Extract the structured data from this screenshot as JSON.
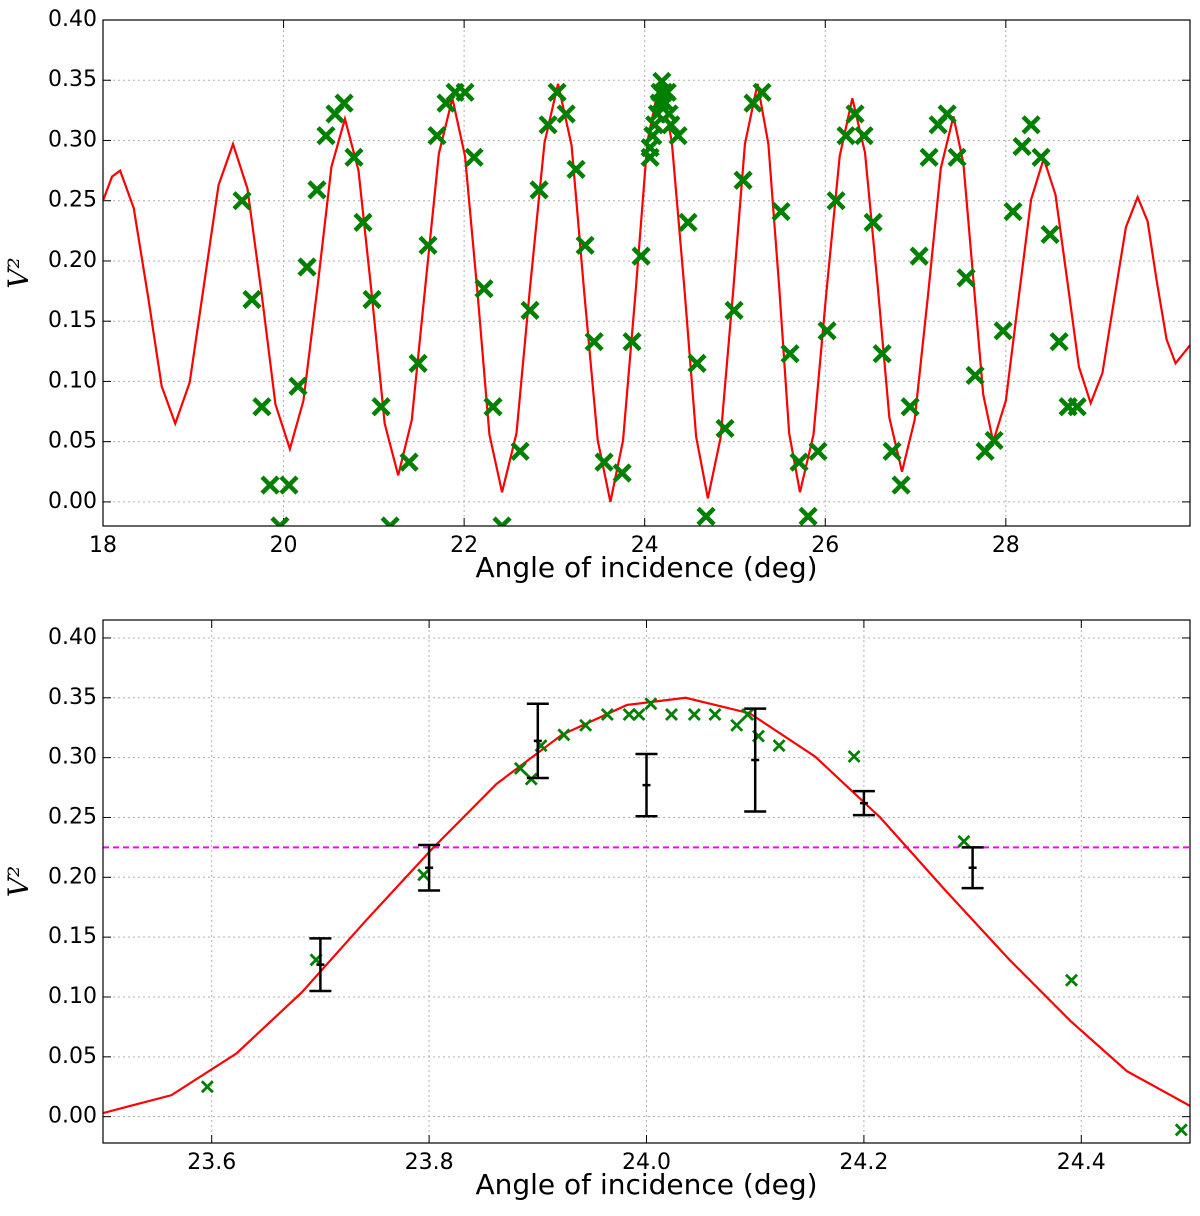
{
  "chart_data": [
    {
      "type": "line",
      "xlabel": "Angle of incidence (deg)",
      "ylabel": "V²",
      "xlim": [
        18,
        30.04
      ],
      "ylim": [
        -0.02,
        0.4
      ],
      "xticks": [
        18,
        20,
        22,
        24,
        26,
        28
      ],
      "yticks": [
        {
          "value": 0,
          "label": "0.00"
        },
        0.05,
        {
          "value": 0.1,
          "label": "0.10"
        },
        0.15,
        {
          "value": 0.2,
          "label": "0.20"
        },
        0.25,
        {
          "value": 0.3,
          "label": "0.30"
        },
        0.35,
        {
          "value": 0.4,
          "label": "0.40"
        }
      ],
      "grid": true,
      "curve": {
        "color": "#ff0000",
        "x": [
          18.0,
          18.1,
          18.19,
          18.34,
          18.5,
          18.65,
          18.8,
          18.96,
          19.12,
          19.28,
          19.44,
          19.6,
          19.76,
          19.91,
          20.07,
          20.22,
          20.38,
          20.53,
          20.68,
          20.83,
          20.98,
          21.12,
          21.27,
          21.42,
          21.57,
          21.72,
          21.87,
          22.01,
          22.15,
          22.28,
          22.42,
          22.58,
          22.73,
          22.89,
          23.04,
          23.19,
          23.33,
          23.48,
          23.62,
          23.76,
          23.9,
          24.03,
          24.17,
          24.3,
          24.44,
          24.57,
          24.7,
          24.84,
          24.98,
          25.11,
          25.25,
          25.37,
          25.49,
          25.6,
          25.72,
          25.87,
          26.01,
          26.16,
          26.3,
          26.44,
          26.58,
          26.71,
          26.85,
          26.99,
          27.14,
          27.28,
          27.42,
          27.53,
          27.64,
          27.75,
          27.86,
          28.0,
          28.14,
          28.28,
          28.42,
          28.55,
          28.68,
          28.81,
          28.94,
          29.07,
          29.2,
          29.33,
          29.46,
          29.57,
          29.67,
          29.78,
          29.88,
          30.04
        ],
        "values": [
          0.25,
          0.27,
          0.275,
          0.244,
          0.17,
          0.096,
          0.065,
          0.099,
          0.181,
          0.263,
          0.297,
          0.26,
          0.171,
          0.081,
          0.044,
          0.084,
          0.181,
          0.278,
          0.318,
          0.275,
          0.17,
          0.065,
          0.022,
          0.068,
          0.179,
          0.289,
          0.335,
          0.287,
          0.172,
          0.056,
          0.008,
          0.057,
          0.178,
          0.298,
          0.347,
          0.296,
          0.174,
          0.051,
          0,
          0.051,
          0.175,
          0.299,
          0.35,
          0.299,
          0.177,
          0.054,
          0.003,
          0.053,
          0.175,
          0.297,
          0.347,
          0.297,
          0.178,
          0.057,
          0.008,
          0.056,
          0.172,
          0.287,
          0.335,
          0.29,
          0.18,
          0.07,
          0.025,
          0.068,
          0.173,
          0.277,
          0.32,
          0.281,
          0.185,
          0.089,
          0.05,
          0.084,
          0.168,
          0.251,
          0.285,
          0.255,
          0.184,
          0.112,
          0.082,
          0.107,
          0.168,
          0.228,
          0.253,
          0.233,
          0.184,
          0.135,
          0.115,
          0.13
        ]
      },
      "points": {
        "color": "#008000",
        "x": [
          19.54,
          19.65,
          19.76,
          19.85,
          20.06,
          19.96,
          20.16,
          20.26,
          20.37,
          20.47,
          20.57,
          20.67,
          20.78,
          20.88,
          20.98,
          21.08,
          21.18,
          21.39,
          21.49,
          21.6,
          21.7,
          21.8,
          21.9,
          22.01,
          22.11,
          22.22,
          22.32,
          22.42,
          22.62,
          22.73,
          22.83,
          22.93,
          23.03,
          23.13,
          23.24,
          23.34,
          23.44,
          23.55,
          23.75,
          23.86,
          23.96,
          24.06,
          24.06,
          24.09,
          24.11,
          24.14,
          24.16,
          24.17,
          24.19,
          24.21,
          24.23,
          24.25,
          24.27,
          24.29,
          24.37,
          24.48,
          24.58,
          24.68,
          24.89,
          24.99,
          25.09,
          25.2,
          25.3,
          25.51,
          25.61,
          25.71,
          25.81,
          25.92,
          26.02,
          26.12,
          26.23,
          26.33,
          26.43,
          26.53,
          26.63,
          26.74,
          26.84,
          26.94,
          27.04,
          27.15,
          27.25,
          27.35,
          27.46,
          27.56,
          27.66,
          27.77,
          27.87,
          27.97,
          28.08,
          28.18,
          28.28,
          28.39,
          28.49,
          28.59,
          28.69,
          28.79
        ],
        "values": [
          0.25,
          0.168,
          0.079,
          0.014,
          0.014,
          -0.02,
          0.096,
          0.195,
          0.259,
          0.304,
          0.322,
          0.331,
          0.286,
          0.232,
          0.168,
          0.079,
          -0.02,
          0.033,
          0.115,
          0.213,
          0.304,
          0.331,
          0.34,
          0.34,
          0.286,
          0.177,
          0.079,
          -0.02,
          0.042,
          0.159,
          0.259,
          0.313,
          0.34,
          0.322,
          0.276,
          0.213,
          0.133,
          0.033,
          0.024,
          0.133,
          0.204,
          0.294,
          0.286,
          0.304,
          0.313,
          0.322,
          0.331,
          0.34,
          0.349,
          0.34,
          0.331,
          0.34,
          0.322,
          0.313,
          0.304,
          0.232,
          0.115,
          -0.012,
          0.061,
          0.159,
          0.267,
          0.331,
          0.34,
          0.241,
          0.123,
          0.033,
          -0.012,
          0.042,
          0.142,
          0.25,
          0.304,
          0.322,
          0.304,
          0.232,
          0.123,
          0.042,
          0.014,
          0.079,
          0.204,
          0.286,
          0.313,
          0.322,
          0.286,
          0.186,
          0.105,
          0.042,
          0.051,
          0.142,
          0.241,
          0.295,
          0.313,
          0.286,
          0.222,
          0.133,
          0.079,
          0.079
        ]
      }
    },
    {
      "type": "line",
      "xlabel": "Angle of incidence (deg)",
      "ylabel": "V²",
      "xlim": [
        23.5,
        24.5
      ],
      "ylim": [
        -0.022,
        0.415
      ],
      "xticks": [
        23.6,
        23.8,
        {
          "value": 24,
          "label": "24.0"
        },
        24.2,
        24.4
      ],
      "yticks": [
        {
          "value": 0,
          "label": "0.00"
        },
        0.05,
        {
          "value": 0.1,
          "label": "0.10"
        },
        0.15,
        {
          "value": 0.2,
          "label": "0.20"
        },
        0.25,
        {
          "value": 0.3,
          "label": "0.30"
        },
        0.35,
        {
          "value": 0.4,
          "label": "0.40"
        }
      ],
      "grid": true,
      "curve": {
        "color": "#ff0000",
        "x": [
          23.5,
          23.563,
          23.623,
          23.683,
          23.743,
          23.803,
          23.862,
          23.922,
          23.982,
          24.036,
          24.095,
          24.155,
          24.215,
          24.274,
          24.334,
          24.39,
          24.442,
          24.5
        ],
        "values": [
          0.003,
          0.018,
          0.053,
          0.104,
          0.165,
          0.224,
          0.278,
          0.319,
          0.344,
          0.35,
          0.337,
          0.301,
          0.25,
          0.19,
          0.131,
          0.08,
          0.038,
          0.009
        ]
      },
      "points": {
        "color": "#008000",
        "x": [
          23.596,
          23.696,
          23.795,
          23.884,
          23.894,
          23.903,
          23.924,
          23.944,
          23.964,
          23.984,
          23.993,
          24.004,
          24.023,
          24.044,
          24.063,
          24.083,
          24.093,
          24.103,
          24.122,
          24.191,
          24.292,
          24.391,
          24.492
        ],
        "values": [
          0.025,
          0.131,
          0.202,
          0.291,
          0.282,
          0.31,
          0.319,
          0.327,
          0.336,
          0.336,
          0.336,
          0.345,
          0.336,
          0.336,
          0.336,
          0.327,
          0.336,
          0.318,
          0.31,
          0.301,
          0.23,
          0.114,
          -0.011
        ]
      },
      "errorbars": {
        "color": "#000000",
        "x": [
          23.7,
          23.8,
          23.9,
          24.0,
          24.1,
          24.2,
          24.3
        ],
        "values": [
          0.127,
          0.208,
          0.314,
          0.277,
          0.298,
          0.262,
          0.208
        ],
        "errors": [
          0.022,
          0.019,
          0.031,
          0.026,
          0.043,
          0.01,
          0.017
        ]
      },
      "hline": {
        "value": 0.225,
        "color": "#ff00ff",
        "style": "dashed"
      }
    }
  ]
}
